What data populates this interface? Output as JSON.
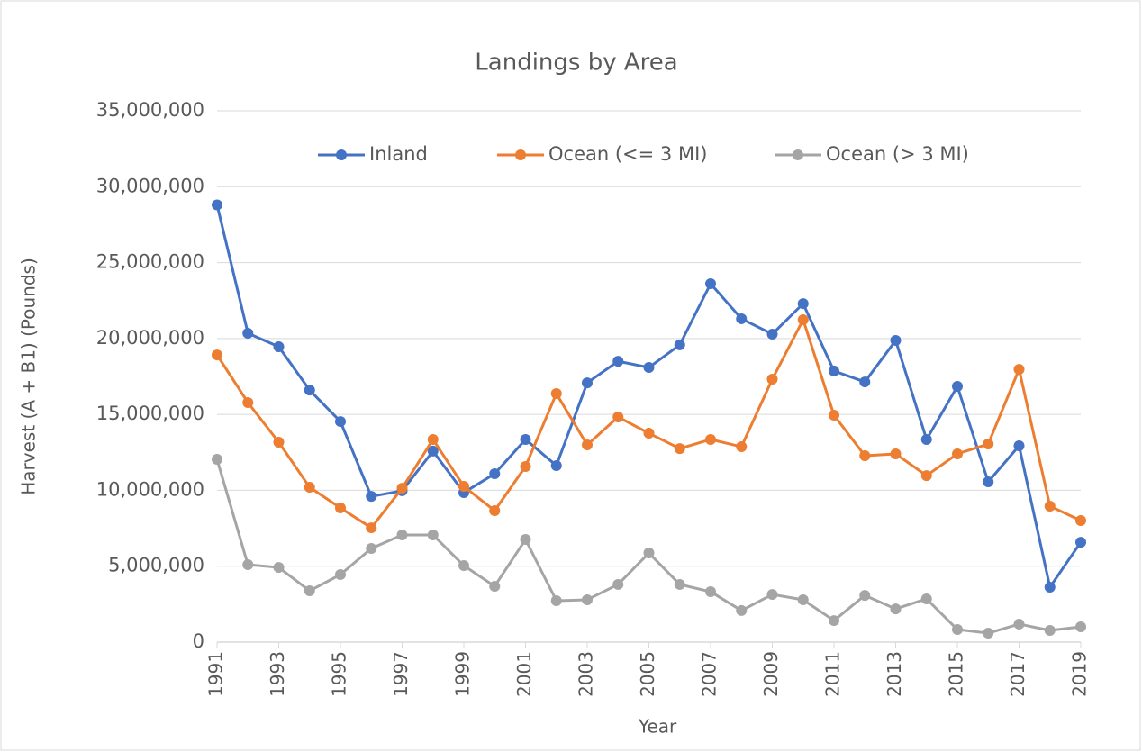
{
  "chart_data": {
    "type": "line",
    "title": "Landings by Area",
    "x_label": "Year",
    "y_label": "Harvest (A + B1) (Pounds)",
    "x": [
      1991,
      1992,
      1993,
      1994,
      1995,
      1996,
      1997,
      1998,
      1999,
      2000,
      2001,
      2002,
      2003,
      2004,
      2005,
      2006,
      2007,
      2008,
      2009,
      2010,
      2011,
      2012,
      2013,
      2014,
      2015,
      2016,
      2017,
      2018,
      2019
    ],
    "xlim": [
      1991,
      2019
    ],
    "xticks": [
      1991,
      1993,
      1995,
      1997,
      1999,
      2001,
      2003,
      2005,
      2007,
      2009,
      2011,
      2013,
      2015,
      2017,
      2019
    ],
    "ylim": [
      0,
      35000000
    ],
    "yticks": [
      0,
      {
        "value": 5000000,
        "label": "5,000,000"
      },
      {
        "value": 10000000,
        "label": "10,000,000"
      },
      {
        "value": 15000000,
        "label": "15,000,000"
      },
      {
        "value": 20000000,
        "label": "20,000,000"
      },
      {
        "value": 25000000,
        "label": "25,000,000"
      },
      {
        "value": 30000000,
        "label": "30,000,000"
      },
      {
        "value": 35000000,
        "label": "35,000,000"
      }
    ],
    "grid": true,
    "legend": "top",
    "series": [
      {
        "name": "Inland",
        "color": "#4472c4",
        "values": [
          28800000,
          20350000,
          19460000,
          16600000,
          14530000,
          9600000,
          9970000,
          12580000,
          9850000,
          11090000,
          13350000,
          11630000,
          17080000,
          18500000,
          18090000,
          19580000,
          23610000,
          21300000,
          20290000,
          22300000,
          17860000,
          17140000,
          19870000,
          13350000,
          16850000,
          10560000,
          12930000,
          3620000,
          6580000
        ]
      },
      {
        "name": "Ocean (<= 3 MI)",
        "color": "#ed7d31",
        "values": [
          18920000,
          15780000,
          13170000,
          10200000,
          8840000,
          7530000,
          10140000,
          13350000,
          10260000,
          8660000,
          11570000,
          16370000,
          12990000,
          14830000,
          13760000,
          12750000,
          13350000,
          12870000,
          17320000,
          21240000,
          14950000,
          12280000,
          12400000,
          10970000,
          12400000,
          13050000,
          17970000,
          8960000,
          8010000
        ]
      },
      {
        "name": "Ocean (> 3 MI)",
        "color": "#a5a5a5",
        "values": [
          12040000,
          5100000,
          4920000,
          3380000,
          4450000,
          6170000,
          7060000,
          7060000,
          5040000,
          3680000,
          6760000,
          2730000,
          2790000,
          3800000,
          5870000,
          3800000,
          3320000,
          2080000,
          3140000,
          2790000,
          1420000,
          3080000,
          2190000,
          2850000,
          830000,
          590000,
          1190000,
          770000,
          1010000
        ]
      }
    ]
  }
}
